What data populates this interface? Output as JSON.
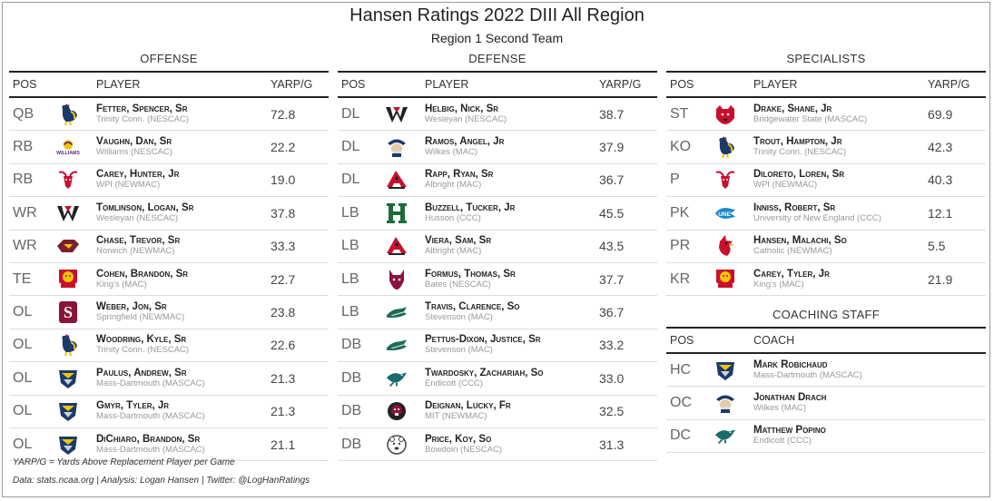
{
  "title": "Hansen Ratings 2022 DIII All Region",
  "subtitle": "Region 1 Second Team",
  "headers": {
    "pos": "POS",
    "player": "PLAYER",
    "yarp": "YARP/G",
    "coach": "COACH"
  },
  "offense": {
    "title": "OFFENSE",
    "rows": [
      {
        "pos": "QB",
        "name": "Fetter, Spencer, Sr",
        "school": "Trinity Conn. (NESCAC)",
        "yarp": "72.8",
        "logo": "rooster-icon",
        "color": "#1b3a6b"
      },
      {
        "pos": "RB",
        "name": "Vaughn, Dan, Sr",
        "school": "Williams (NESCAC)",
        "yarp": "22.2",
        "logo": "williams-wordmark-icon",
        "color": "#5b2a86"
      },
      {
        "pos": "RB",
        "name": "Carey, Hunter, Jr",
        "school": "WPI (NEWMAC)",
        "yarp": "19.0",
        "logo": "goat-icon",
        "color": "#c8102e"
      },
      {
        "pos": "WR",
        "name": "Tomlinson, Logan, Sr",
        "school": "Wesleyan (NESCAC)",
        "yarp": "37.8",
        "logo": "w-letter-icon",
        "color": "#222"
      },
      {
        "pos": "WR",
        "name": "Chase, Trevor, Sr",
        "school": "Norwich (NEWMAC)",
        "yarp": "33.3",
        "logo": "norwich-icon",
        "color": "#7a1f2b"
      },
      {
        "pos": "TE",
        "name": "Cohen, Brandon, Sr",
        "school": "King's (MAC)",
        "yarp": "22.7",
        "logo": "lion-crest-icon",
        "color": "#c8102e"
      },
      {
        "pos": "OL",
        "name": "Weber, Jon, Sr",
        "school": "Springfield (NEWMAC)",
        "yarp": "23.8",
        "logo": "s-letter-icon",
        "color": "#8a1538"
      },
      {
        "pos": "OL",
        "name": "Woodring, Kyle, Sr",
        "school": "Trinity Conn. (NESCAC)",
        "yarp": "22.6",
        "logo": "rooster-icon",
        "color": "#1b3a6b"
      },
      {
        "pos": "OL",
        "name": "Paulus, Andrew, Sr",
        "school": "Mass-Dartmouth (MASCAC)",
        "yarp": "21.3",
        "logo": "corsair-icon",
        "color": "#1b3a6b"
      },
      {
        "pos": "OL",
        "name": "Gmyr, Tyler, Jr",
        "school": "Mass-Dartmouth (MASCAC)",
        "yarp": "21.3",
        "logo": "corsair-icon",
        "color": "#1b3a6b"
      },
      {
        "pos": "OL",
        "name": "DiChiaro, Brandon, Sr",
        "school": "Mass-Dartmouth (MASCAC)",
        "yarp": "21.1",
        "logo": "corsair-icon",
        "color": "#1b3a6b"
      }
    ]
  },
  "defense": {
    "title": "DEFENSE",
    "rows": [
      {
        "pos": "DL",
        "name": "Helbig, Nick, Sr",
        "school": "Wesleyan (NESCAC)",
        "yarp": "38.7",
        "logo": "w-letter-icon",
        "color": "#222"
      },
      {
        "pos": "DL",
        "name": "Ramos, Angel, Jr",
        "school": "Wilkes (MAC)",
        "yarp": "37.9",
        "logo": "colonel-icon",
        "color": "#1b3a6b"
      },
      {
        "pos": "DL",
        "name": "Rapp, Ryan, Sr",
        "school": "Albright (MAC)",
        "yarp": "36.7",
        "logo": "lion-a-icon",
        "color": "#c8102e"
      },
      {
        "pos": "LB",
        "name": "Buzzell, Tucker, Jr",
        "school": "Husson (CCC)",
        "yarp": "45.5",
        "logo": "h-letter-icon",
        "color": "#1e6b3a"
      },
      {
        "pos": "LB",
        "name": "Viera, Sam, Sr",
        "school": "Albright (MAC)",
        "yarp": "43.5",
        "logo": "lion-a-icon",
        "color": "#c8102e"
      },
      {
        "pos": "LB",
        "name": "Formus, Thomas, Sr",
        "school": "Bates (NESCAC)",
        "yarp": "37.7",
        "logo": "bobcat-icon",
        "color": "#8a1538"
      },
      {
        "pos": "LB",
        "name": "Travis, Clarence, So",
        "school": "Stevenson (MAC)",
        "yarp": "36.7",
        "logo": "mustang-icon",
        "color": "#1e6b5a"
      },
      {
        "pos": "DB",
        "name": "Pettus-Dixon, Justice, Sr",
        "school": "Stevenson (MAC)",
        "yarp": "33.2",
        "logo": "mustang-icon",
        "color": "#1e6b5a"
      },
      {
        "pos": "DB",
        "name": "Twardosky, Zachariah, So",
        "school": "Endicott (CCC)",
        "yarp": "33.0",
        "logo": "gull-icon",
        "color": "#1b6b6b"
      },
      {
        "pos": "DB",
        "name": "Deignan, Lucky, Fr",
        "school": "MIT (NEWMAC)",
        "yarp": "32.5",
        "logo": "beaver-icon",
        "color": "#8a1538"
      },
      {
        "pos": "DB",
        "name": "Price, Koy, So",
        "school": "Bowdoin (NESCAC)",
        "yarp": "31.3",
        "logo": "polar-bear-icon",
        "color": "#444"
      }
    ]
  },
  "specialists": {
    "title": "SPECIALISTS",
    "rows": [
      {
        "pos": "ST",
        "name": "Drake, Shane, Jr",
        "school": "Bridgewater State (MASCAC)",
        "yarp": "69.9",
        "logo": "bear-icon",
        "color": "#c8102e"
      },
      {
        "pos": "KO",
        "name": "Trout, Hampton, Jr",
        "school": "Trinity Conn. (NESCAC)",
        "yarp": "42.3",
        "logo": "rooster-icon",
        "color": "#1b3a6b"
      },
      {
        "pos": "P",
        "name": "Diloreto, Loren, Sr",
        "school": "WPI (NEWMAC)",
        "yarp": "40.3",
        "logo": "goat-icon",
        "color": "#c8102e"
      },
      {
        "pos": "PK",
        "name": "Inniss, Robert, Sr",
        "school": "University of New England (CCC)",
        "yarp": "12.1",
        "logo": "une-icon",
        "color": "#1e88c8"
      },
      {
        "pos": "PR",
        "name": "Hansen, Malachi, So",
        "school": "Catholic (NEWMAC)",
        "yarp": "5.5",
        "logo": "cardinal-icon",
        "color": "#c8102e"
      },
      {
        "pos": "KR",
        "name": "Carey, Tyler, Jr",
        "school": "King's (MAC)",
        "yarp": "21.9",
        "logo": "lion-crest-icon",
        "color": "#c8102e"
      }
    ]
  },
  "coaching": {
    "title": "COACHING STAFF",
    "rows": [
      {
        "pos": "HC",
        "name": "Mark Robichaud",
        "school": "Mass-Dartmouth (MASCAC)",
        "logo": "corsair-icon",
        "color": "#1b3a6b"
      },
      {
        "pos": "OC",
        "name": "Jonathan Drach",
        "school": "Wilkes (MAC)",
        "logo": "colonel-icon",
        "color": "#1b3a6b"
      },
      {
        "pos": "DC",
        "name": "Matthew Popino",
        "school": "Endicott (CCC)",
        "logo": "gull-icon",
        "color": "#1b6b6b"
      }
    ]
  },
  "footnotes": {
    "definition": "YARP/G = Yards Above Replacement Player per Game",
    "source": "Data: stats.ncaa.org | Analysis: Logan Hansen | Twitter: @LogHanRatings"
  }
}
